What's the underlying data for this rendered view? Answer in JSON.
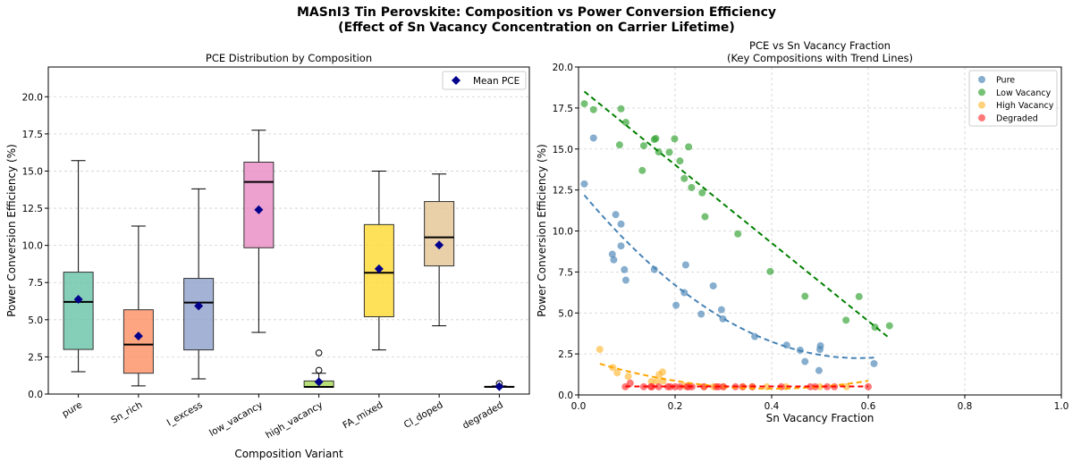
{
  "suptitle": [
    "MASnI3 Tin Perovskite: Composition vs Power Conversion Efficiency",
    "(Effect of Sn Vacancy Concentration on Carrier Lifetime)"
  ],
  "chart_data": [
    {
      "type": "box",
      "title": "PCE Distribution by Composition",
      "xlabel": "Composition Variant",
      "ylabel": "Power Conversion Efficiency (%)",
      "ylim": [
        0,
        22
      ],
      "yticks": [
        "0.0",
        "2.5",
        "5.0",
        "7.5",
        "10.0",
        "12.5",
        "15.0",
        "17.5",
        "20.0"
      ],
      "grid": "y dashed",
      "legend": {
        "placement": "top-right",
        "entries": [
          "Mean PCE"
        ],
        "marker_color": "#00008b"
      },
      "categories": [
        "pure",
        "Sn_rich",
        "I_excess",
        "low_vacancy",
        "high_vacancy",
        "FA_mixed",
        "Cl_doped",
        "degraded"
      ],
      "boxes": [
        {
          "whislo": 1.5,
          "q1": 3.0,
          "med": 6.2,
          "q3": 8.2,
          "whishi": 15.7,
          "mean": 6.37,
          "fliers": [],
          "color": "#66c2a5"
        },
        {
          "whislo": 0.55,
          "q1": 1.4,
          "med": 3.33,
          "q3": 5.67,
          "whishi": 11.3,
          "mean": 3.9,
          "fliers": [],
          "color": "#fc8d62"
        },
        {
          "whislo": 1.02,
          "q1": 2.97,
          "med": 6.15,
          "q3": 7.78,
          "whishi": 13.8,
          "mean": 5.93,
          "fliers": [],
          "color": "#8da0cb"
        },
        {
          "whislo": 4.15,
          "q1": 9.84,
          "med": 14.27,
          "q3": 15.6,
          "whishi": 17.75,
          "mean": 12.4,
          "fliers": [],
          "color": "#e78ac3"
        },
        {
          "whislo": 0.46,
          "q1": 0.46,
          "med": 0.48,
          "q3": 0.88,
          "whishi": 1.4,
          "mean": 0.82,
          "fliers": [
            2.77,
            1.6
          ],
          "color": "#a6d854"
        },
        {
          "whislo": 2.97,
          "q1": 5.2,
          "med": 8.16,
          "q3": 11.4,
          "whishi": 15.0,
          "mean": 8.42,
          "fliers": [],
          "color": "#ffd92f"
        },
        {
          "whislo": 4.59,
          "q1": 8.62,
          "med": 10.54,
          "q3": 12.95,
          "whishi": 14.8,
          "mean": 10.02,
          "fliers": [],
          "color": "#e5c494"
        },
        {
          "whislo": 0.45,
          "q1": 0.46,
          "med": 0.48,
          "q3": 0.52,
          "whishi": 0.55,
          "mean": 0.5,
          "fliers": [
            0.7
          ],
          "color": "#b3b3b3"
        }
      ]
    },
    {
      "type": "scatter",
      "title": [
        "PCE vs Sn Vacancy Fraction",
        "(Key Compositions with Trend Lines)"
      ],
      "xlabel": "Sn Vacancy Fraction",
      "ylabel": "Power Conversion Efficiency (%)",
      "xlim": [
        0,
        1
      ],
      "ylim": [
        0,
        20
      ],
      "xticks": [
        "0.0",
        "0.2",
        "0.4",
        "0.6",
        "0.8",
        "1.0"
      ],
      "yticks": [
        "0.0",
        "2.5",
        "5.0",
        "7.5",
        "10.0",
        "12.5",
        "15.0",
        "17.5",
        "20.0"
      ],
      "grid": "both dashed",
      "legend_placement": "top-right",
      "series": [
        {
          "name": "Pure",
          "color": "#4682b4",
          "trend_color": "#4682b4",
          "trend_poly": [
            30.8,
            -35.73,
            12.61
          ],
          "trend_range": [
            0.012,
            0.612
          ],
          "points": [
            [
              0.012,
              12.87
            ],
            [
              0.031,
              15.67
            ],
            [
              0.077,
              11.0
            ],
            [
              0.088,
              10.42
            ],
            [
              0.088,
              9.09
            ],
            [
              0.07,
              8.58
            ],
            [
              0.073,
              8.24
            ],
            [
              0.095,
              7.64
            ],
            [
              0.098,
              7.0
            ],
            [
              0.157,
              7.65
            ],
            [
              0.222,
              7.93
            ],
            [
              0.219,
              6.24
            ],
            [
              0.202,
              5.47
            ],
            [
              0.254,
              4.93
            ],
            [
              0.279,
              6.65
            ],
            [
              0.296,
              5.2
            ],
            [
              0.299,
              4.64
            ],
            [
              0.365,
              3.56
            ],
            [
              0.431,
              3.04
            ],
            [
              0.459,
              2.73
            ],
            [
              0.469,
              2.04
            ],
            [
              0.501,
              3.0
            ],
            [
              0.5,
              2.78
            ],
            [
              0.498,
              1.49
            ],
            [
              0.612,
              1.91
            ]
          ]
        },
        {
          "name": "Low Vacancy",
          "color": "#2ca02c",
          "trend_color": "#008000",
          "trend_poly": [
            0,
            -23.8,
            18.79
          ],
          "trend_range": [
            0.012,
            0.644
          ],
          "points": [
            [
              0.012,
              17.76
            ],
            [
              0.031,
              17.4
            ],
            [
              0.088,
              17.45
            ],
            [
              0.098,
              16.62
            ],
            [
              0.085,
              15.25
            ],
            [
              0.135,
              15.2
            ],
            [
              0.132,
              13.69
            ],
            [
              0.157,
              15.58
            ],
            [
              0.16,
              15.64
            ],
            [
              0.166,
              14.82
            ],
            [
              0.188,
              14.8
            ],
            [
              0.199,
              15.62
            ],
            [
              0.21,
              14.27
            ],
            [
              0.228,
              15.13
            ],
            [
              0.219,
              13.2
            ],
            [
              0.234,
              12.65
            ],
            [
              0.256,
              12.33
            ],
            [
              0.262,
              10.87
            ],
            [
              0.33,
              9.82
            ],
            [
              0.397,
              7.53
            ],
            [
              0.469,
              6.02
            ],
            [
              0.581,
              6.0
            ],
            [
              0.554,
              4.56
            ],
            [
              0.614,
              4.13
            ],
            [
              0.644,
              4.22
            ]
          ]
        },
        {
          "name": "High Vacancy",
          "color": "#ffb833",
          "trend_color": "#ffa500",
          "trend_poly": [
            12,
            -9.6,
            2.3
          ],
          "trend_range": [
            0.044,
            0.6
          ],
          "points": [
            [
              0.044,
              2.78
            ],
            [
              0.071,
              1.67
            ],
            [
              0.08,
              1.35
            ],
            [
              0.103,
              1.13
            ],
            [
              0.167,
              1.24
            ],
            [
              0.174,
              1.4
            ],
            [
              0.151,
              0.82
            ],
            [
              0.162,
              0.85
            ],
            [
              0.175,
              0.85
            ],
            [
              0.22,
              0.55
            ],
            [
              0.26,
              0.5
            ],
            [
              0.28,
              0.5
            ],
            [
              0.3,
              0.5
            ],
            [
              0.34,
              0.5
            ],
            [
              0.36,
              0.5
            ],
            [
              0.39,
              0.5
            ],
            [
              0.43,
              0.5
            ],
            [
              0.5,
              0.5
            ],
            [
              0.555,
              0.5
            ]
          ]
        },
        {
          "name": "Degraded",
          "color": "#ff3030",
          "trend_color": "#ff0000",
          "trend_poly": [
            0,
            0,
            0.52
          ],
          "trend_range": [
            0.097,
            0.6
          ],
          "points": [
            [
              0.097,
              0.5
            ],
            [
              0.107,
              0.72
            ],
            [
              0.135,
              0.5
            ],
            [
              0.15,
              0.5
            ],
            [
              0.152,
              0.5
            ],
            [
              0.166,
              0.5
            ],
            [
              0.185,
              0.5
            ],
            [
              0.19,
              0.5
            ],
            [
              0.2,
              0.5
            ],
            [
              0.21,
              0.5
            ],
            [
              0.225,
              0.5
            ],
            [
              0.228,
              0.5
            ],
            [
              0.235,
              0.5
            ],
            [
              0.26,
              0.5
            ],
            [
              0.285,
              0.5
            ],
            [
              0.29,
              0.5
            ],
            [
              0.3,
              0.5
            ],
            [
              0.325,
              0.5
            ],
            [
              0.34,
              0.5
            ],
            [
              0.36,
              0.5
            ],
            [
              0.42,
              0.5
            ],
            [
              0.48,
              0.5
            ],
            [
              0.49,
              0.5
            ],
            [
              0.515,
              0.5
            ],
            [
              0.53,
              0.5
            ],
            [
              0.6,
              0.5
            ]
          ]
        }
      ]
    }
  ]
}
